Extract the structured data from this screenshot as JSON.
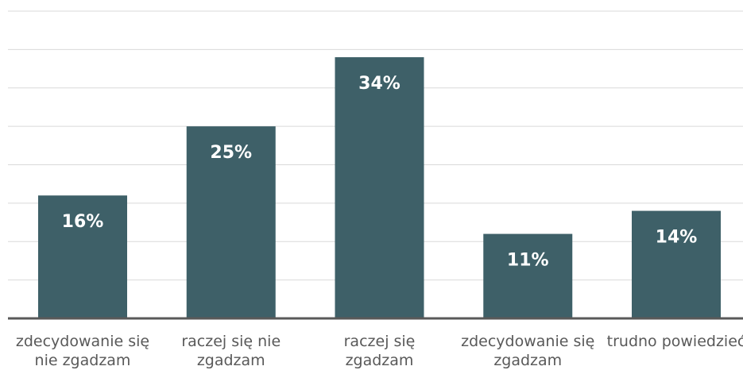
{
  "chart_data": {
    "type": "bar",
    "categories": [
      "zdecydowanie się nie zgadzam",
      "raczej się nie zgadzam",
      "raczej się zgadzam",
      "zdecydowanie się zgadzam",
      "trudno powiedzieć"
    ],
    "values": [
      16,
      25,
      34,
      11,
      14
    ],
    "value_labels": [
      "16%",
      "25%",
      "34%",
      "11%",
      "14%"
    ],
    "color": "#3e6068",
    "ylim": [
      0,
      40
    ],
    "yticks": [
      0,
      5,
      10,
      15,
      20,
      25,
      30,
      35,
      40
    ],
    "grid": true
  }
}
